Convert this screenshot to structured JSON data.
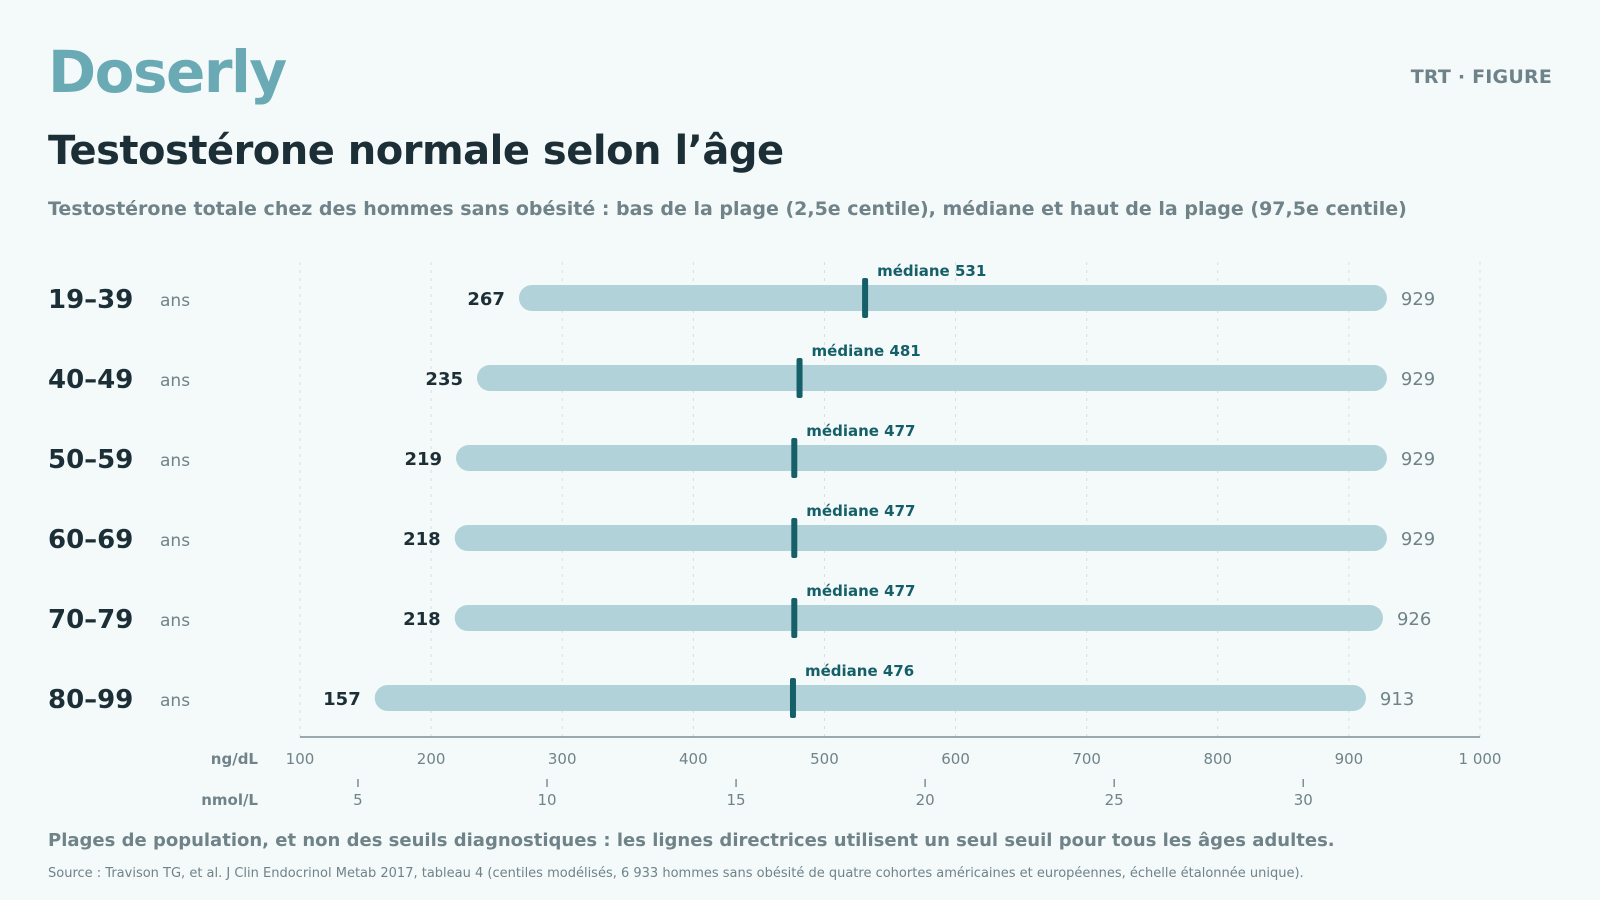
{
  "header": {
    "brand": "Doserly",
    "tag": "TRT · FIGURE",
    "title": "Testostérone normale selon l’âge",
    "subtitle": "Testostérone totale chez des hommes sans obésité : bas de la plage (2,5e centile), médiane et haut de la plage (97,5e centile)"
  },
  "colors": {
    "bar": "#b0d2d8",
    "median": "#155f69",
    "median_label": "#155f69",
    "axis": "#7d9096",
    "grid": "#d5dfe2",
    "text_dark": "#1d2f36",
    "text_muted": "#6f8389"
  },
  "chart_data": {
    "type": "range",
    "unit_label": "ans",
    "median_prefix": "médiane",
    "categories": [
      "19–39",
      "40–49",
      "50–59",
      "60–69",
      "70–79",
      "80–99"
    ],
    "series": [
      {
        "name": "2,5e centile",
        "values": [
          267,
          235,
          219,
          218,
          218,
          157
        ]
      },
      {
        "name": "médiane",
        "values": [
          531,
          481,
          477,
          477,
          477,
          476
        ]
      },
      {
        "name": "97,5e centile",
        "values": [
          929,
          929,
          929,
          929,
          926,
          913
        ]
      }
    ],
    "x_axis": {
      "label": "ng/dL",
      "range": [
        100,
        1000
      ],
      "ticks": [
        100,
        200,
        300,
        400,
        500,
        600,
        700,
        800,
        900,
        1000
      ],
      "tick_labels": [
        "100",
        "200",
        "300",
        "400",
        "500",
        "600",
        "700",
        "800",
        "900",
        "1 000"
      ]
    },
    "secondary_axis": {
      "label": "nmol/L",
      "ticks": [
        5,
        10,
        15,
        20,
        25,
        30
      ],
      "ng_per_nmol": 28.84
    },
    "grid": true
  },
  "footer": {
    "note": "Plages de population, et non des seuils diagnostiques : les lignes directrices utilisent un seul seuil pour tous les âges adultes.",
    "source": "Source : Travison TG, et al. J Clin Endocrinol Metab 2017, tableau 4 (centiles modélisés, 6 933 hommes sans obésité de quatre cohortes américaines et européennes, échelle étalonnée unique)."
  }
}
